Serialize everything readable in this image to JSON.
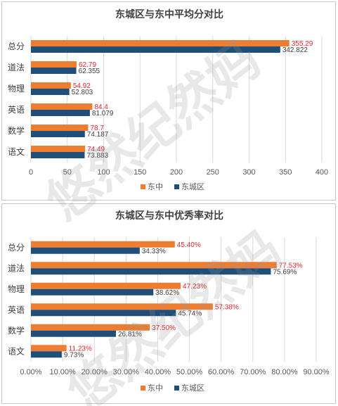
{
  "colors": {
    "dongzhong": "#ED7D31",
    "dongcheng": "#1F4E79",
    "label_red": "#E8262B",
    "label_dark": "#404040",
    "grid": "#D9D9D9",
    "axis_text": "#595959"
  },
  "watermark": {
    "line1": "悠然纪然妈",
    "line2": "悠然纪然妈"
  },
  "chart_data": [
    {
      "type": "bar",
      "orientation": "horizontal",
      "title": "东城区与东中平均分对比",
      "categories": [
        "总分",
        "道法",
        "物理",
        "英语",
        "数学",
        "语文"
      ],
      "series": [
        {
          "name": "东中",
          "values": [
            355.29,
            62.79,
            54.92,
            84.4,
            78.7,
            74.49
          ],
          "labels": [
            "355.29",
            "62.79",
            "54.92",
            "84.4",
            "78.7",
            "74.49"
          ]
        },
        {
          "name": "东城区",
          "values": [
            342.822,
            62.355,
            52.803,
            81.079,
            74.187,
            73.883
          ],
          "labels": [
            "342.822",
            "62.355",
            "52.803",
            "81.079",
            "74.187",
            "73.883"
          ]
        }
      ],
      "xlim": [
        0,
        400
      ],
      "ticks": [
        "0",
        "50",
        "100",
        "150",
        "200",
        "250",
        "300",
        "350",
        "400"
      ],
      "grid": true,
      "legend": "bottom"
    },
    {
      "type": "bar",
      "orientation": "horizontal",
      "title": "东城区与东中优秀率对比",
      "categories": [
        "总分",
        "道法",
        "物理",
        "英语",
        "数学",
        "语文"
      ],
      "series": [
        {
          "name": "东中",
          "values": [
            45.4,
            77.53,
            47.23,
            57.38,
            37.5,
            11.23
          ],
          "labels": [
            "45.40%",
            "77.53%",
            "47.23%",
            "57.38%",
            "37.50%",
            "11.23%"
          ]
        },
        {
          "name": "东城区",
          "values": [
            34.33,
            75.69,
            38.62,
            45.74,
            26.81,
            9.73
          ],
          "labels": [
            "34.33%",
            "75.69%",
            "38.62%",
            "45.74%",
            "26.81%",
            "9.73%"
          ]
        }
      ],
      "xlim": [
        0,
        90
      ],
      "ticks": [
        "0.00%",
        "10.00%",
        "20.00%",
        "30.00%",
        "40.00%",
        "50.00%",
        "60.00%",
        "70.00%",
        "80.00%",
        "90.00%"
      ],
      "grid": true,
      "legend": "bottom"
    }
  ]
}
